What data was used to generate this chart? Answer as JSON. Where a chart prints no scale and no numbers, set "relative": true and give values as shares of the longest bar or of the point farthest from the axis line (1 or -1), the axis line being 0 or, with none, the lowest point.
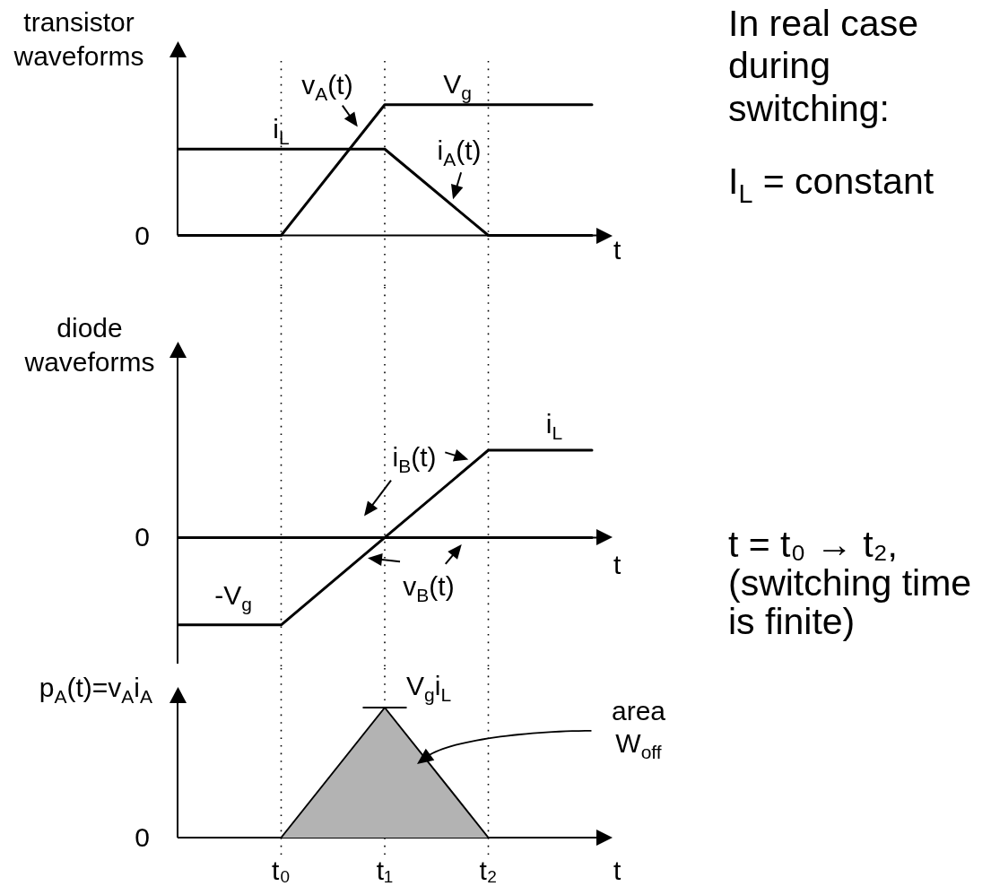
{
  "chart_data": [
    {
      "type": "line",
      "ylabel": "transistor waveforms",
      "xlabel": "t",
      "relative": true,
      "categories": [
        null,
        "t₀",
        "t₁",
        "t₂",
        null
      ],
      "tick_labels": false,
      "marker": "none",
      "ref_lines": [
        {
          "axis": "x",
          "value": "t₀",
          "line_style": "dotted",
          "color": "#000000"
        },
        {
          "axis": "x",
          "value": "t₁",
          "line_style": "dotted",
          "color": "#000000"
        },
        {
          "axis": "x",
          "value": "t₂",
          "line_style": "dotted",
          "color": "#000000"
        }
      ],
      "series": [
        {
          "name": "v$_{A}$(t)",
          "color": "#000000",
          "values": [
            0,
            0,
            1,
            1,
            1
          ]
        },
        {
          "name": "i$_{A}$(t)",
          "color": "#000000",
          "values": [
            0.66,
            0.66,
            0.66,
            0,
            0
          ]
        }
      ],
      "annotations": [
        "0",
        {
          "text": "V$_{g}$",
          "y": 1
        },
        {
          "text": "i$_{L}$",
          "y": 0.66
        },
        "In real case during switching:",
        "I$_{L}$ = constant"
      ]
    },
    {
      "type": "line",
      "ylabel": "diode waveforms",
      "xlabel": "t",
      "relative": true,
      "categories": [
        null,
        "t₀",
        "t₁",
        "t₂",
        null
      ],
      "tick_labels": false,
      "marker": "none",
      "ref_lines": [
        {
          "axis": "x",
          "value": "t₀",
          "line_style": "dotted",
          "color": "#000000"
        },
        {
          "axis": "x",
          "value": "t₁",
          "line_style": "dotted",
          "color": "#000000"
        },
        {
          "axis": "x",
          "value": "t₂",
          "line_style": "dotted",
          "color": "#000000"
        }
      ],
      "series": [
        {
          "name": "i$_{B}$(t)",
          "color": "#000000",
          "values": [
            0,
            0,
            0,
            1,
            1
          ]
        },
        {
          "name": "v$_{B}$(t)",
          "color": "#000000",
          "values": [
            -1,
            -1,
            0,
            0,
            0
          ]
        }
      ],
      "annotations": [
        "0",
        {
          "text": "i$_{L}$",
          "y": 1
        },
        {
          "text": "-V$_{g}$",
          "y": -1
        },
        "t = t₀ → t₂, (switching time is finite)"
      ]
    },
    {
      "type": "area",
      "ylabel": "p$_{A}$(t)=v$_{A}$i$_{A}$",
      "xlabel": "t",
      "relative": true,
      "categories": [
        null,
        "t₀",
        "t₁",
        "t₂",
        null
      ],
      "tick_labels": "x",
      "marker": "none",
      "ref_lines": [
        {
          "axis": "x",
          "value": "t₀",
          "line_style": "dotted",
          "color": "#000000"
        },
        {
          "axis": "x",
          "value": "t₁",
          "line_style": "dotted",
          "color": "#000000"
        },
        {
          "axis": "x",
          "value": "t₂",
          "line_style": "dotted",
          "color": "#000000"
        }
      ],
      "series": [
        {
          "color": "#b3b3b3",
          "values": [
            0,
            0,
            1,
            0,
            0
          ]
        }
      ],
      "annotations": [
        "0",
        {
          "text": "V$_{g}$i$_{L}$",
          "x": "t₁",
          "y": 1
        },
        "area W$_{off}$"
      ]
    }
  ]
}
